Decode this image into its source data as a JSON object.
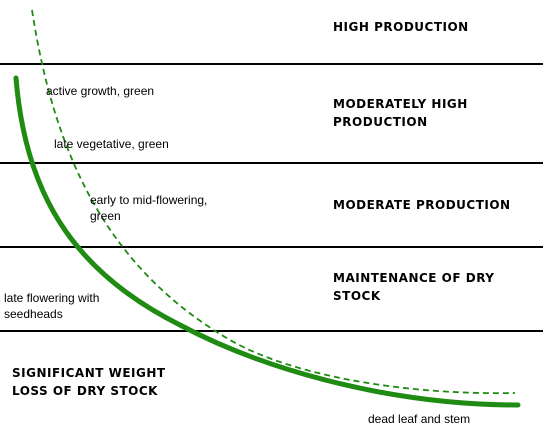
{
  "diagram": {
    "zones": [
      {
        "label": "HIGH PRODUCTION"
      },
      {
        "label": "MODERATELY HIGH\nPRODUCTION"
      },
      {
        "label": "MODERATE PRODUCTION"
      },
      {
        "label": "MAINTENANCE OF DRY\nSTOCK"
      },
      {
        "label": "SIGNIFICANT WEIGHT\nLOSS OF DRY STOCK"
      }
    ],
    "stages": [
      {
        "label": "active growth, green"
      },
      {
        "label": "late vegetative, green"
      },
      {
        "label": "early to mid-flowering,\ngreen"
      },
      {
        "label": "late flowering with\nseedheads"
      },
      {
        "label": "dead leaf and stem"
      }
    ],
    "colors": {
      "curve": "#1f8b12",
      "dashed_curve": "#1f8b12",
      "zone_line": "#000000",
      "background": "#ffffff"
    }
  }
}
